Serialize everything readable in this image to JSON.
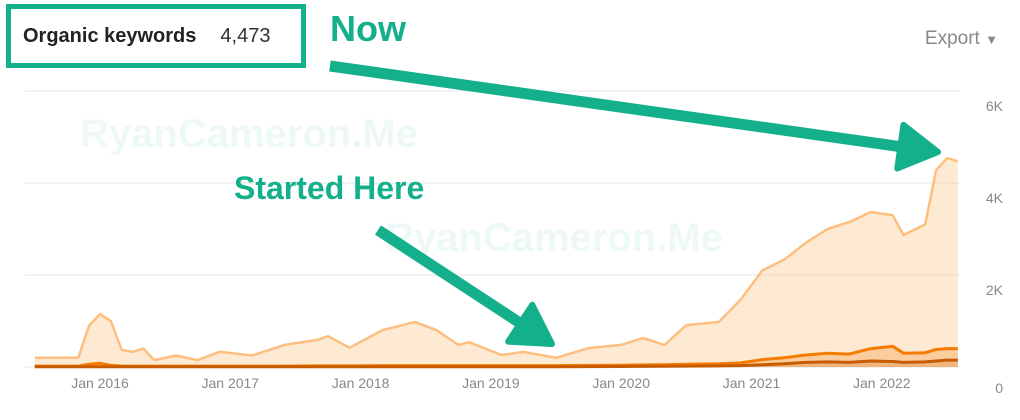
{
  "header": {
    "title": "Organic keywords",
    "count": "4,473",
    "export_label": "Export",
    "export_icon": "caret-down-icon"
  },
  "annotations": {
    "now": "Now",
    "started": "Started Here",
    "watermark": "RyanCameron.Me",
    "color": "#13b08b"
  },
  "chart_data": {
    "type": "area",
    "ylim": [
      0,
      6000
    ],
    "yticks": [
      "0",
      "2K",
      "4K",
      "6K"
    ],
    "yticks_values": [
      0,
      2000,
      4000,
      6000
    ],
    "xticks": [
      "Jan 2016",
      "Jan 2017",
      "Jan 2018",
      "Jan 2019",
      "Jan 2020",
      "Jan 2021",
      "Jan 2022"
    ],
    "grid": true,
    "colors": [
      "#fdbf80",
      "#f57c00",
      "#c75b00"
    ],
    "x": [
      "2015-07",
      "2015-11",
      "2015-12",
      "2016-01",
      "2016-02",
      "2016-03",
      "2016-04",
      "2016-05",
      "2016-06",
      "2016-08",
      "2016-10",
      "2016-12",
      "2017-03",
      "2017-06",
      "2017-09",
      "2017-10",
      "2017-12",
      "2018-03",
      "2018-06",
      "2018-08",
      "2018-10",
      "2018-11",
      "2019-02",
      "2019-04",
      "2019-07",
      "2019-10",
      "2020-01",
      "2020-03",
      "2020-05",
      "2020-07",
      "2020-10",
      "2020-12",
      "2021-02",
      "2021-04",
      "2021-06",
      "2021-08",
      "2021-10",
      "2021-12",
      "2022-02",
      "2022-03",
      "2022-05",
      "2022-06",
      "2022-07",
      "2022-08"
    ],
    "series": [
      {
        "values": [
          200,
          200,
          900,
          1150,
          1000,
          370,
          330,
          400,
          150,
          250,
          150,
          330,
          250,
          480,
          590,
          670,
          420,
          800,
          980,
          800,
          480,
          540,
          260,
          330,
          200,
          410,
          480,
          630,
          480,
          910,
          980,
          1460,
          2100,
          2330,
          2700,
          3000,
          3150,
          3370,
          3300,
          2870,
          3100,
          4280,
          4540,
          4473
        ]
      },
      {
        "values": [
          20,
          20,
          60,
          80,
          40,
          20,
          20,
          20,
          20,
          20,
          20,
          20,
          20,
          20,
          25,
          25,
          25,
          30,
          30,
          30,
          30,
          30,
          30,
          30,
          30,
          35,
          40,
          45,
          50,
          60,
          70,
          90,
          160,
          200,
          260,
          300,
          280,
          400,
          450,
          300,
          310,
          380,
          400,
          400
        ]
      },
      {
        "values": [
          5,
          5,
          5,
          5,
          5,
          5,
          5,
          5,
          5,
          5,
          5,
          5,
          5,
          5,
          5,
          5,
          5,
          5,
          5,
          5,
          5,
          5,
          5,
          5,
          5,
          8,
          10,
          12,
          15,
          20,
          25,
          30,
          50,
          70,
          100,
          110,
          100,
          130,
          120,
          100,
          110,
          130,
          150,
          150
        ]
      }
    ]
  }
}
